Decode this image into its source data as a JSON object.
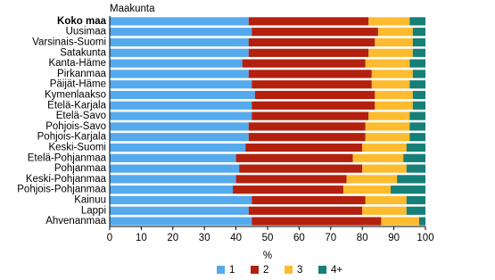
{
  "chart_data": {
    "type": "stacked-bar-horizontal",
    "title": "Maakunta",
    "x_label": "%",
    "categories": [
      "Koko maa",
      "Uusimaa",
      "Varsinais-Suomi",
      "Satakunta",
      "Kanta-Häme",
      "Pirkanmaa",
      "Päijät-Häme",
      "Kymenlaakso",
      "Etelä-Karjala",
      "Etelä-Savo",
      "Pohjois-Savo",
      "Pohjois-Karjala",
      "Keski-Suomi",
      "Etelä-Pohjanmaa",
      "Pohjanmaa",
      "Keski-Pohjanmaa",
      "Pohjois-Pohjanmaa",
      "Kainuu",
      "Lappi",
      "Ahvenanmaa"
    ],
    "series": [
      {
        "name": "1",
        "color": "#55aaee",
        "values": [
          44,
          45,
          44,
          44,
          42,
          44,
          45,
          46,
          45,
          45,
          44,
          44,
          43,
          40,
          41,
          40,
          39,
          45,
          44,
          45
        ]
      },
      {
        "name": "2",
        "color": "#b3200e",
        "values": [
          38,
          40,
          40,
          38,
          39,
          39,
          38,
          38,
          39,
          37,
          37,
          37,
          37,
          37,
          39,
          35,
          35,
          36,
          36,
          41
        ]
      },
      {
        "name": "3",
        "color": "#fdbb2f",
        "values": [
          13,
          11,
          12,
          14,
          14,
          13,
          12,
          12,
          12,
          13,
          14,
          14,
          14,
          16,
          14,
          16,
          15,
          13,
          14,
          12
        ]
      },
      {
        "name": "4+",
        "color": "#157f78",
        "values": [
          5,
          4,
          4,
          4,
          5,
          4,
          5,
          4,
          4,
          5,
          5,
          5,
          6,
          7,
          6,
          9,
          11,
          6,
          6,
          2
        ]
      }
    ],
    "xlim": [
      0,
      100
    ],
    "xticks": [
      0,
      10,
      20,
      30,
      40,
      50,
      60,
      70,
      80,
      90,
      100
    ],
    "legend": "bottom"
  }
}
